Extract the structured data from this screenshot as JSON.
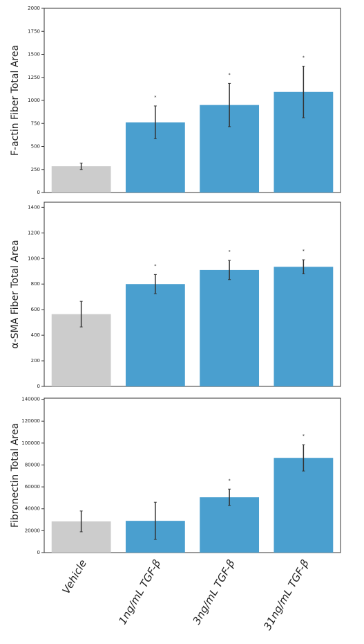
{
  "chart_data": [
    {
      "type": "bar",
      "ylabel": "F-actin Fiber Total Area",
      "values": [
        285,
        762,
        950,
        1092
      ],
      "errors": [
        35,
        178,
        235,
        280
      ],
      "annotations": [
        null,
        "*",
        "*",
        "*"
      ],
      "colors": [
        "#cccccc",
        "#4a9fcf",
        "#4a9fcf",
        "#4a9fcf"
      ],
      "ylim": [
        0,
        2000
      ],
      "yticks": [
        0,
        250,
        500,
        750,
        1000,
        1250,
        1500,
        1750,
        2000
      ]
    },
    {
      "type": "bar",
      "ylabel": "α-SMA Fiber Total Area",
      "values": [
        565,
        800,
        910,
        935
      ],
      "errors": [
        100,
        75,
        75,
        55
      ],
      "annotations": [
        null,
        "*",
        "*",
        "*"
      ],
      "colors": [
        "#cccccc",
        "#4a9fcf",
        "#4a9fcf",
        "#4a9fcf"
      ],
      "ylim": [
        0,
        1440
      ],
      "yticks": [
        0,
        200,
        400,
        600,
        800,
        1000,
        1200,
        1400
      ]
    },
    {
      "type": "bar",
      "ylabel": "Fibronectin Total Area",
      "categories": [
        "Vehicle",
        "1ng/mL TGF-β",
        "3ng/mL TGF-β",
        "31ng/mL TGF-β"
      ],
      "values": [
        28500,
        29000,
        50500,
        86500
      ],
      "errors": [
        9500,
        17000,
        7500,
        12000
      ],
      "annotations": [
        null,
        null,
        "*",
        "*"
      ],
      "colors": [
        "#cccccc",
        "#4a9fcf",
        "#4a9fcf",
        "#4a9fcf"
      ],
      "ylim": [
        0,
        141000
      ],
      "yticks": [
        0,
        20000,
        40000,
        60000,
        80000,
        100000,
        120000,
        140000
      ]
    }
  ]
}
